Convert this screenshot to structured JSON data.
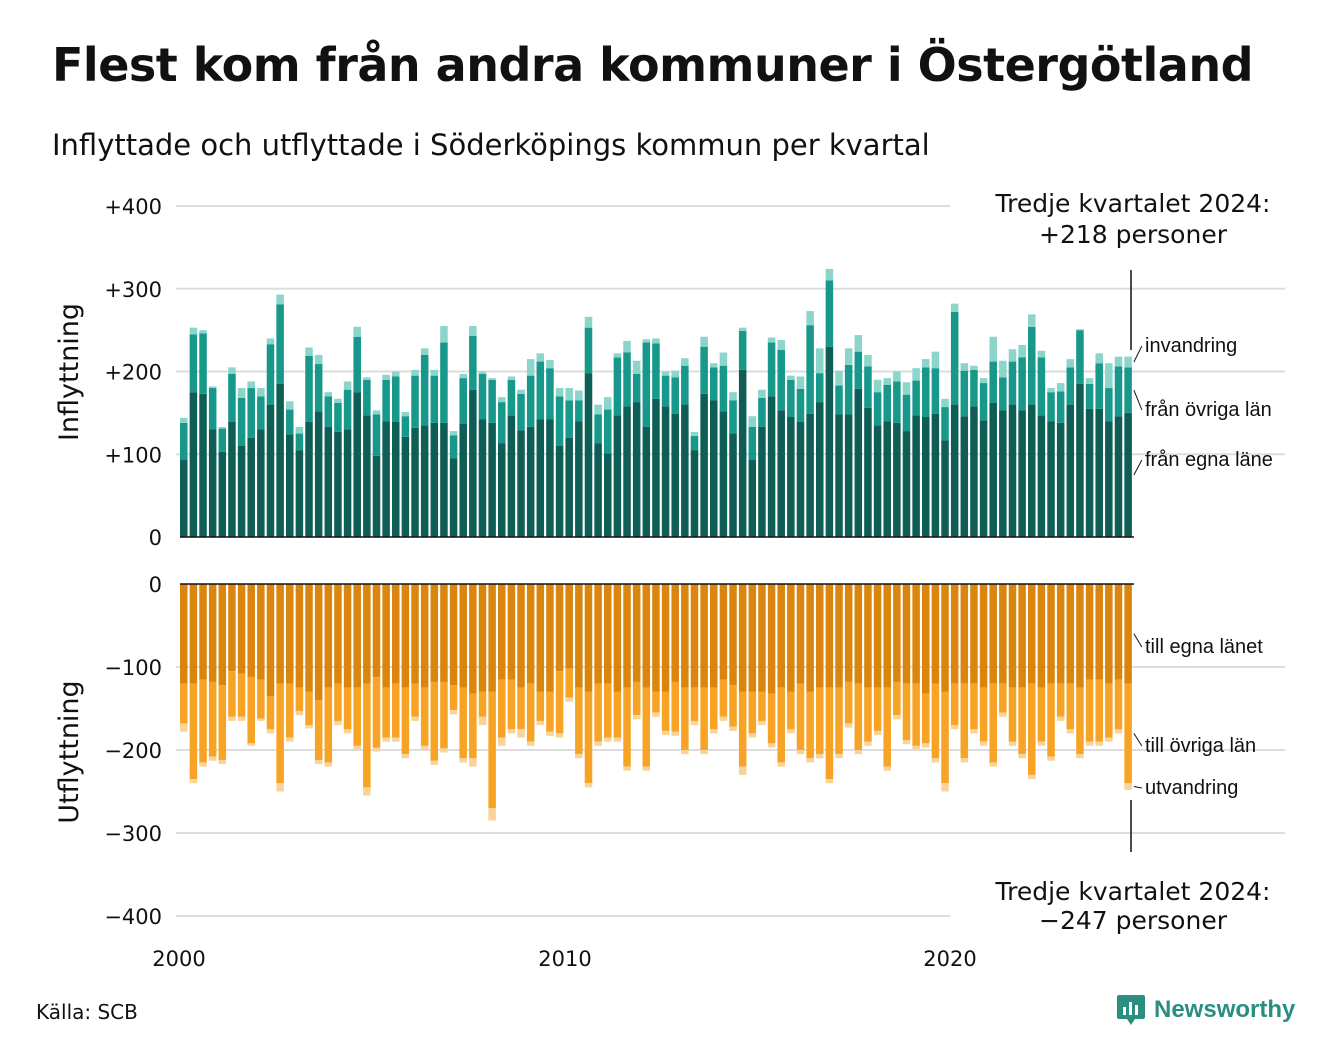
{
  "title": "Flest kom från andra kommuner i Östergötland",
  "subtitle": "Inflyttade och utflyttade i Söderköpings kommun per kvartal",
  "source": "Källa: SCB",
  "brand": "Newsworthy",
  "colors": {
    "in_own": "#0f5e55",
    "in_other": "#17988a",
    "in_immigration": "#8cd5cb",
    "out_own": "#da860e",
    "out_other": "#f6a326",
    "out_emigration": "#f8d49a",
    "brand": "#2a8f80"
  },
  "chart_data": [
    {
      "type": "bar",
      "stacked": true,
      "ylabel": "Inflyttning",
      "ylim": [
        0,
        400
      ],
      "yticks": [
        "0",
        "+100",
        "+200",
        "+300",
        "+400"
      ],
      "annotation": [
        "Tredje kvartalet 2024:",
        "+218 personer"
      ],
      "x_start": "2000 Q1",
      "x_end": "2024 Q3",
      "series": [
        {
          "name": "från egna läne",
          "values": [
            93,
            175,
            173,
            130,
            103,
            139,
            110,
            120,
            130,
            160,
            185,
            124,
            105,
            139,
            152,
            133,
            127,
            130,
            175,
            147,
            98,
            140,
            139,
            121,
            132,
            135,
            138,
            138,
            95,
            137,
            178,
            142,
            138,
            113,
            147,
            129,
            133,
            142,
            142,
            110,
            120,
            140,
            198,
            113,
            101,
            147,
            158,
            163,
            133,
            167,
            158,
            149,
            160,
            105,
            173,
            165,
            152,
            125,
            202,
            93,
            133,
            170,
            153,
            145,
            139,
            149,
            163,
            230,
            148,
            148,
            179,
            156,
            135,
            140,
            138,
            128,
            147,
            145,
            149,
            117,
            160,
            146,
            158,
            141,
            162,
            153,
            160,
            153,
            160,
            147,
            140,
            138,
            160,
            185,
            155,
            155,
            140,
            146,
            150
          ]
        },
        {
          "name": "från övriga län",
          "values": [
            45,
            70,
            73,
            50,
            28,
            58,
            58,
            60,
            40,
            73,
            96,
            30,
            20,
            80,
            57,
            37,
            35,
            48,
            67,
            43,
            50,
            50,
            55,
            25,
            63,
            85,
            57,
            97,
            28,
            55,
            65,
            55,
            52,
            50,
            43,
            44,
            62,
            70,
            62,
            60,
            45,
            25,
            55,
            35,
            53,
            70,
            65,
            34,
            102,
            67,
            37,
            44,
            47,
            17,
            57,
            40,
            55,
            40,
            47,
            40,
            35,
            65,
            73,
            45,
            40,
            107,
            35,
            80,
            35,
            60,
            45,
            50,
            40,
            44,
            50,
            44,
            42,
            60,
            55,
            40,
            112,
            55,
            44,
            45,
            50,
            40,
            52,
            64,
            94,
            70,
            35,
            38,
            45,
            65,
            30,
            55,
            40,
            60,
            55
          ]
        },
        {
          "name": "invandring",
          "values": [
            6,
            8,
            4,
            2,
            2,
            8,
            12,
            8,
            10,
            7,
            12,
            10,
            8,
            10,
            11,
            5,
            5,
            10,
            12,
            3,
            5,
            6,
            6,
            5,
            7,
            8,
            7,
            20,
            5,
            5,
            12,
            3,
            2,
            6,
            4,
            5,
            20,
            10,
            10,
            10,
            15,
            12,
            13,
            12,
            15,
            5,
            14,
            16,
            4,
            6,
            5,
            8,
            9,
            5,
            12,
            5,
            16,
            10,
            4,
            13,
            10,
            6,
            12,
            5,
            15,
            17,
            30,
            14,
            18,
            20,
            20,
            14,
            15,
            8,
            12,
            15,
            15,
            10,
            20,
            10,
            10,
            9,
            5,
            6,
            30,
            20,
            15,
            15,
            15,
            8,
            5,
            10,
            10,
            1,
            7,
            12,
            30,
            12,
            13
          ]
        }
      ]
    },
    {
      "type": "bar",
      "stacked": true,
      "ylabel": "Utflyttning",
      "ylim": [
        -400,
        0
      ],
      "yticks": [
        "0",
        "−100",
        "−200",
        "−300",
        "−400"
      ],
      "annotation": [
        "Tredje kvartalet 2024:",
        "−247 personer"
      ],
      "x_start": "2000 Q1",
      "x_end": "2024 Q3",
      "series": [
        {
          "name": "till egna länet",
          "values": [
            -120,
            -120,
            -115,
            -118,
            -122,
            -105,
            -108,
            -112,
            -115,
            -135,
            -120,
            -120,
            -125,
            -130,
            -140,
            -125,
            -120,
            -125,
            -125,
            -120,
            -112,
            -125,
            -120,
            -125,
            -120,
            -125,
            -118,
            -118,
            -122,
            -125,
            -132,
            -130,
            -130,
            -115,
            -115,
            -125,
            -120,
            -130,
            -130,
            -105,
            -102,
            -125,
            -130,
            -120,
            -120,
            -130,
            -125,
            -118,
            -125,
            -130,
            -130,
            -118,
            -125,
            -125,
            -125,
            -125,
            -115,
            -122,
            -130,
            -130,
            -130,
            -132,
            -125,
            -130,
            -120,
            -130,
            -125,
            -125,
            -125,
            -118,
            -120,
            -125,
            -125,
            -125,
            -118,
            -120,
            -120,
            -132,
            -120,
            -130,
            -120,
            -120,
            -120,
            -125,
            -120,
            -120,
            -125,
            -125,
            -120,
            -125,
            -120,
            -120,
            -120,
            -125,
            -115,
            -115,
            -120,
            -115,
            -120
          ]
        },
        {
          "name": "till övriga län",
          "values": [
            -48,
            -115,
            -100,
            -90,
            -90,
            -55,
            -52,
            -80,
            -47,
            -40,
            -120,
            -65,
            -28,
            -40,
            -72,
            -90,
            -45,
            -50,
            -70,
            -125,
            -85,
            -60,
            -65,
            -80,
            -40,
            -70,
            -95,
            -80,
            -30,
            -85,
            -78,
            -30,
            -140,
            -70,
            -60,
            -50,
            -70,
            -35,
            -48,
            -75,
            -35,
            -80,
            -110,
            -70,
            -65,
            -55,
            -95,
            -40,
            -95,
            -25,
            -47,
            -60,
            -75,
            -40,
            -75,
            -50,
            -45,
            -50,
            -90,
            -50,
            -35,
            -60,
            -90,
            -45,
            -80,
            -80,
            -80,
            -110,
            -80,
            -50,
            -80,
            -65,
            -52,
            -95,
            -40,
            -68,
            -75,
            -60,
            -90,
            -110,
            -50,
            -90,
            -55,
            -65,
            -95,
            -35,
            -65,
            -80,
            -110,
            -65,
            -88,
            -40,
            -55,
            -80,
            -75,
            -75,
            -65,
            -60,
            -120
          ]
        },
        {
          "name": "utvandring",
          "values": [
            -10,
            -5,
            -5,
            -5,
            -5,
            -5,
            -5,
            -3,
            -3,
            -5,
            -10,
            -5,
            -5,
            -4,
            -5,
            -5,
            -5,
            -5,
            -5,
            -10,
            -5,
            -5,
            -5,
            -5,
            -5,
            -5,
            -5,
            -5,
            -5,
            -5,
            -10,
            -10,
            -15,
            -10,
            -5,
            -10,
            -5,
            -5,
            -5,
            -5,
            -5,
            -5,
            -5,
            -5,
            -5,
            -5,
            -5,
            -5,
            -5,
            -5,
            -5,
            -5,
            -5,
            -5,
            -5,
            -5,
            -5,
            -5,
            -10,
            -5,
            -5,
            -5,
            -5,
            -5,
            -5,
            -5,
            -5,
            -5,
            -5,
            -5,
            -5,
            -5,
            -5,
            -5,
            -5,
            -5,
            -5,
            -5,
            -5,
            -10,
            -5,
            -5,
            -5,
            -5,
            -5,
            -5,
            -5,
            -5,
            -5,
            -5,
            -5,
            -5,
            -5,
            -5,
            -5,
            -5,
            -5,
            -5,
            -8
          ]
        }
      ]
    }
  ],
  "x_axis": {
    "ticks": [
      "2000",
      "2010",
      "2020"
    ]
  }
}
